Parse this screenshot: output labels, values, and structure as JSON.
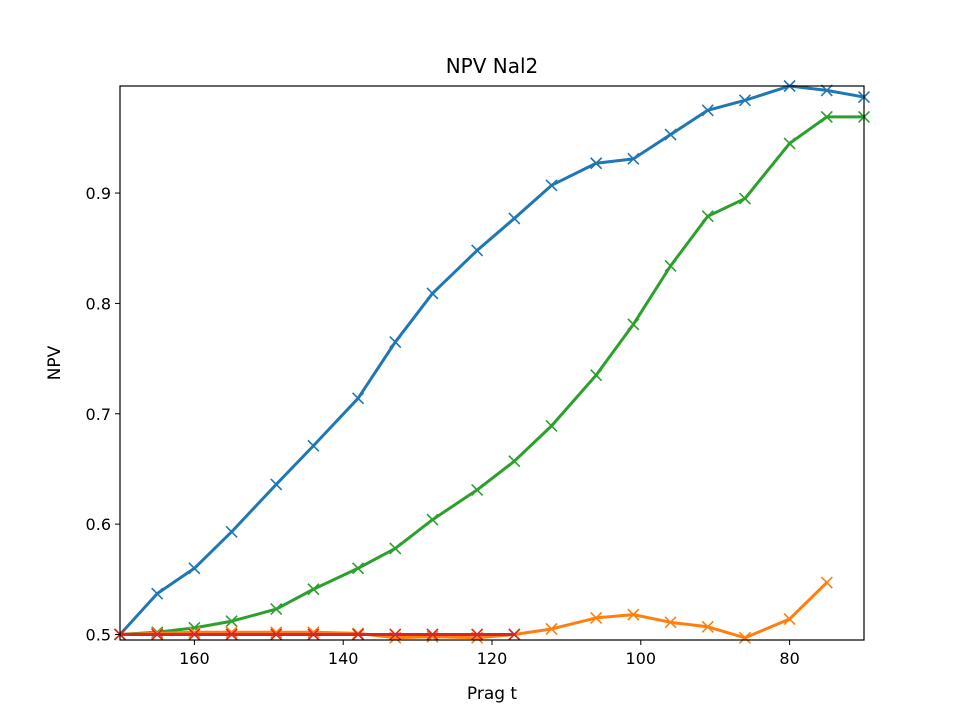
{
  "chart_data": {
    "type": "line",
    "title": "NPV Nal2",
    "xlabel": "Prag t",
    "ylabel": "NPV",
    "xlim": [
      170,
      70
    ],
    "ylim": [
      0.495,
      0.997
    ],
    "x_inverted": true,
    "xticks": [
      160,
      140,
      120,
      100,
      80
    ],
    "xtick_labels": [
      "160",
      "140",
      "120",
      "100",
      "80"
    ],
    "yticks": [
      0.5,
      0.6,
      0.7,
      0.8,
      0.9
    ],
    "ytick_labels": [
      "0.5",
      "0.6",
      "0.7",
      "0.8",
      "0.9"
    ],
    "grid": false,
    "legend": false,
    "marker": "x",
    "series": [
      {
        "color": "#1f77b4",
        "x": [
          170,
          165,
          160,
          155,
          149,
          144,
          138,
          133,
          128,
          122,
          117,
          112,
          106,
          101,
          96,
          91,
          86,
          80,
          75,
          70
        ],
        "y": [
          0.5,
          0.537,
          0.56,
          0.593,
          0.636,
          0.671,
          0.714,
          0.765,
          0.809,
          0.848,
          0.877,
          0.907,
          0.927,
          0.931,
          0.953,
          0.975,
          0.984,
          0.997,
          0.993,
          0.987
        ]
      },
      {
        "color": "#2ca02c",
        "x": [
          170,
          165,
          160,
          155,
          149,
          144,
          138,
          133,
          128,
          122,
          117,
          112,
          106,
          101,
          96,
          91,
          86,
          80,
          75,
          70
        ],
        "y": [
          0.5,
          0.502,
          0.506,
          0.512,
          0.523,
          0.541,
          0.56,
          0.578,
          0.604,
          0.631,
          0.657,
          0.689,
          0.735,
          0.781,
          0.834,
          0.879,
          0.895,
          0.945,
          0.969,
          0.969
        ]
      },
      {
        "color": "#ff7f0e",
        "x": [
          170,
          165,
          160,
          155,
          149,
          144,
          138,
          133,
          128,
          122,
          117,
          112,
          106,
          101,
          96,
          91,
          86,
          80,
          75
        ],
        "y": [
          0.5,
          0.501,
          0.502,
          0.502,
          0.502,
          0.502,
          0.501,
          0.497,
          0.498,
          0.497,
          0.5,
          0.505,
          0.515,
          0.518,
          0.511,
          0.507,
          0.497,
          0.514,
          0.547
        ]
      },
      {
        "color": "#d62728",
        "x": [
          170,
          165,
          160,
          155,
          149,
          144,
          138,
          133,
          128,
          122,
          117
        ],
        "y": [
          0.5,
          0.5,
          0.5,
          0.5,
          0.5,
          0.5,
          0.5,
          0.5,
          0.5,
          0.5,
          0.5
        ]
      }
    ]
  }
}
